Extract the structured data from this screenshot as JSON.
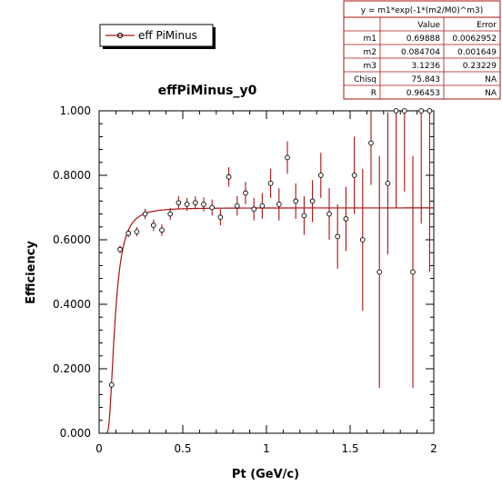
{
  "chart_data": {
    "type": "scatter",
    "title": "effPiMinus_y0",
    "xlabel": "Pt (GeV/c)",
    "ylabel": "Efficiency",
    "xlim": [
      0,
      2
    ],
    "ylim": [
      0,
      1
    ],
    "grid": false,
    "legend_position": "top-left",
    "x_ticks": [
      {
        "value": 0,
        "label": "0"
      },
      {
        "value": 0.5,
        "label": "0.5"
      },
      {
        "value": 1,
        "label": "1"
      },
      {
        "value": 1.5,
        "label": "1.5"
      },
      {
        "value": 2,
        "label": "2"
      }
    ],
    "y_ticks": [
      {
        "value": 0,
        "label": "0.000"
      },
      {
        "value": 0.2,
        "label": "0.2000"
      },
      {
        "value": 0.4,
        "label": "0.4000"
      },
      {
        "value": 0.6,
        "label": "0.6000"
      },
      {
        "value": 0.8,
        "label": "0.8000"
      },
      {
        "value": 1,
        "label": "1.000"
      }
    ],
    "series": [
      {
        "name": "eff PiMinus",
        "color": "#aa1111",
        "points": [
          {
            "x": 0.075,
            "y": 0.15,
            "err": 0.0
          },
          {
            "x": 0.125,
            "y": 0.57,
            "err": 0.012
          },
          {
            "x": 0.175,
            "y": 0.62,
            "err": 0.012
          },
          {
            "x": 0.225,
            "y": 0.625,
            "err": 0.014
          },
          {
            "x": 0.275,
            "y": 0.68,
            "err": 0.016
          },
          {
            "x": 0.325,
            "y": 0.645,
            "err": 0.018
          },
          {
            "x": 0.375,
            "y": 0.63,
            "err": 0.018
          },
          {
            "x": 0.425,
            "y": 0.68,
            "err": 0.018
          },
          {
            "x": 0.475,
            "y": 0.715,
            "err": 0.02
          },
          {
            "x": 0.525,
            "y": 0.71,
            "err": 0.02
          },
          {
            "x": 0.575,
            "y": 0.715,
            "err": 0.02
          },
          {
            "x": 0.625,
            "y": 0.71,
            "err": 0.022
          },
          {
            "x": 0.675,
            "y": 0.7,
            "err": 0.025
          },
          {
            "x": 0.725,
            "y": 0.67,
            "err": 0.025
          },
          {
            "x": 0.775,
            "y": 0.795,
            "err": 0.03
          },
          {
            "x": 0.825,
            "y": 0.705,
            "err": 0.03
          },
          {
            "x": 0.875,
            "y": 0.745,
            "err": 0.035
          },
          {
            "x": 0.925,
            "y": 0.695,
            "err": 0.035
          },
          {
            "x": 0.975,
            "y": 0.705,
            "err": 0.04
          },
          {
            "x": 1.025,
            "y": 0.775,
            "err": 0.045
          },
          {
            "x": 1.075,
            "y": 0.71,
            "err": 0.05
          },
          {
            "x": 1.125,
            "y": 0.855,
            "err": 0.05
          },
          {
            "x": 1.175,
            "y": 0.72,
            "err": 0.055
          },
          {
            "x": 1.225,
            "y": 0.675,
            "err": 0.06
          },
          {
            "x": 1.275,
            "y": 0.72,
            "err": 0.065
          },
          {
            "x": 1.325,
            "y": 0.8,
            "err": 0.07
          },
          {
            "x": 1.375,
            "y": 0.68,
            "err": 0.08
          },
          {
            "x": 1.425,
            "y": 0.61,
            "err": 0.1
          },
          {
            "x": 1.475,
            "y": 0.665,
            "err": 0.1
          },
          {
            "x": 1.525,
            "y": 0.8,
            "err": 0.12
          },
          {
            "x": 1.575,
            "y": 0.6,
            "err": 0.22
          },
          {
            "x": 1.625,
            "y": 0.9,
            "err": 0.13
          },
          {
            "x": 1.675,
            "y": 0.5,
            "err": 0.36
          },
          {
            "x": 1.725,
            "y": 0.775,
            "err": 0.22
          },
          {
            "x": 1.775,
            "y": 1.0,
            "err": 0.3
          },
          {
            "x": 1.825,
            "y": 1.0,
            "err": 0.25
          },
          {
            "x": 1.875,
            "y": 0.5,
            "err": 0.36
          },
          {
            "x": 1.925,
            "y": 1.0,
            "err": 0.35
          },
          {
            "x": 1.975,
            "y": 1.0,
            "err": 0.5
          }
        ]
      }
    ],
    "fit_curve": {
      "color": "#aa1111",
      "m1": 0.69888,
      "m2": 0.084704,
      "m3": 3.1236
    }
  },
  "fit_box": {
    "formula": "y = m1*exp(-1*(m2/M0)^m3)",
    "headers": [
      "",
      "Value",
      "Error"
    ],
    "rows": [
      [
        "m1",
        "0.69888",
        "0.0062952"
      ],
      [
        "m2",
        "0.084704",
        "0.001649"
      ],
      [
        "m3",
        "3.1236",
        "0.23229"
      ],
      [
        "Chisq",
        "75.843",
        "NA"
      ],
      [
        "R",
        "0.96453",
        "NA"
      ]
    ],
    "border_color": "#aa1111"
  }
}
